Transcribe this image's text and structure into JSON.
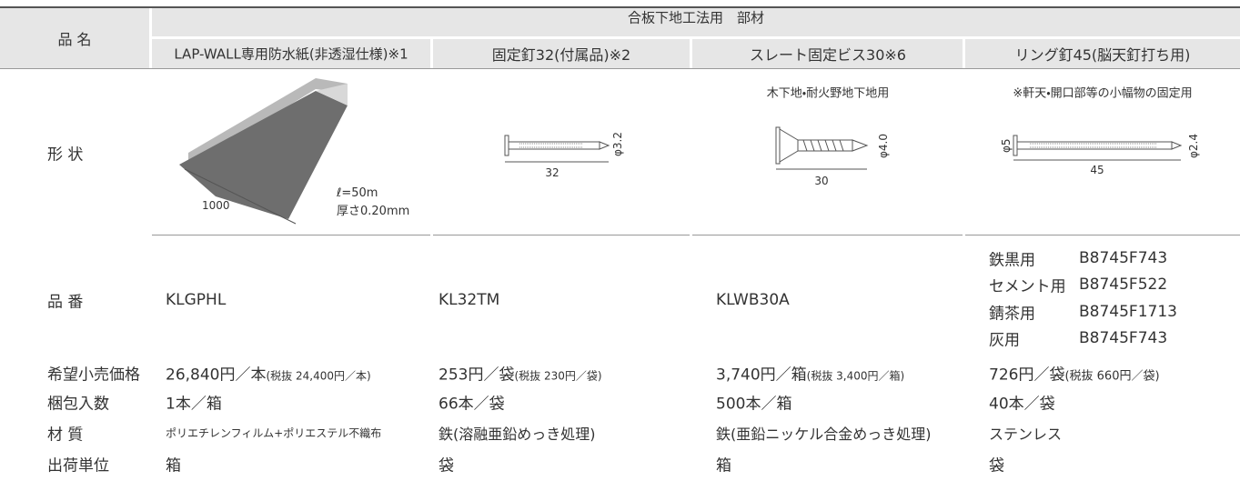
{
  "header": {
    "label": "品 名",
    "group": "合板下地工法用　部材"
  },
  "row_labels": {
    "shape": "形 状",
    "part_number": "品 番",
    "price": "希望小売価格",
    "quantity": "梱包入数",
    "material": "材 質",
    "unit": "出荷単位"
  },
  "products": [
    {
      "name": "LAP-WALL専用防水紙(非透湿仕様)※1",
      "shape": {
        "width": "1000",
        "length": "ℓ=50m",
        "thickness": "厚さ0.20mm"
      },
      "part_number": "KLGPHL",
      "price": "26,840円／本",
      "price_note": "(税抜 24,400円／本)",
      "quantity": "1本／箱",
      "material": "ポリエチレンフィルム+ポリエステル不織布",
      "unit": "箱"
    },
    {
      "name": "固定釘32(付属品)※2",
      "shape": {
        "length": "32",
        "diameter": "φ3.2"
      },
      "part_number": "KL32TM",
      "price": "253円／袋",
      "price_note": "(税抜 230円／袋)",
      "quantity": "66本／袋",
      "material": "鉄(溶融亜鉛めっき処理)",
      "unit": "袋"
    },
    {
      "name": "スレート固定ビス30※6",
      "note": "木下地・耐火野地下地用",
      "shape": {
        "length": "30",
        "diameter": "φ4.0"
      },
      "part_number": "KLWB30A",
      "price": "3,740円／箱",
      "price_note": "(税抜 3,400円／箱)",
      "quantity": "500本／箱",
      "material": "鉄(亜鉛ニッケル合金めっき処理)",
      "unit": "箱"
    },
    {
      "name": "リング釘45(脳天釘打ち用)",
      "note": "※軒天・開口部等の小幅物の固定用",
      "shape": {
        "head": "φ5",
        "length": "45",
        "diameter": "φ2.4"
      },
      "part_numbers": [
        {
          "label": "鉄黒用",
          "code": "B8745F743"
        },
        {
          "label": "セメント用",
          "code": "B8745F522"
        },
        {
          "label": "錆茶用",
          "code": "B8745F1713"
        },
        {
          "label": "灰用",
          "code": "B8745F743"
        }
      ],
      "price": "726円／袋",
      "price_note": "(税抜 660円／袋)",
      "quantity": "40本／袋",
      "material": "ステンレス",
      "unit": "袋"
    }
  ]
}
